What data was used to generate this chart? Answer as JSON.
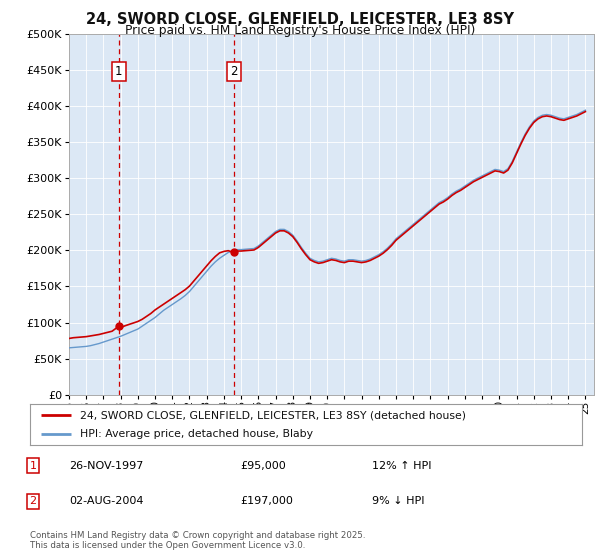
{
  "title_line1": "24, SWORD CLOSE, GLENFIELD, LEICESTER, LE3 8SY",
  "title_line2": "Price paid vs. HM Land Registry's House Price Index (HPI)",
  "legend_entry1": "24, SWORD CLOSE, GLENFIELD, LEICESTER, LE3 8SY (detached house)",
  "legend_entry2": "HPI: Average price, detached house, Blaby",
  "annotation1_date": "26-NOV-1997",
  "annotation1_price": "£95,000",
  "annotation1_hpi": "12% ↑ HPI",
  "annotation2_date": "02-AUG-2004",
  "annotation2_price": "£197,000",
  "annotation2_hpi": "9% ↓ HPI",
  "footer": "Contains HM Land Registry data © Crown copyright and database right 2025.\nThis data is licensed under the Open Government Licence v3.0.",
  "red_color": "#cc0000",
  "blue_color": "#6699cc",
  "plot_bg": "#dce8f5",
  "ylim": [
    0,
    500000
  ],
  "yticks": [
    0,
    50000,
    100000,
    150000,
    200000,
    250000,
    300000,
    350000,
    400000,
    450000,
    500000
  ],
  "xlim_start": 1995.3,
  "xlim_end": 2025.5,
  "sale1_x": 1997.9,
  "sale1_y": 95000,
  "sale2_x": 2004.58,
  "sale2_y": 197000,
  "hpi_x": [
    1995.0,
    1995.25,
    1995.5,
    1995.75,
    1996.0,
    1996.25,
    1996.5,
    1996.75,
    1997.0,
    1997.25,
    1997.5,
    1997.75,
    1998.0,
    1998.25,
    1998.5,
    1998.75,
    1999.0,
    1999.25,
    1999.5,
    1999.75,
    2000.0,
    2000.25,
    2000.5,
    2000.75,
    2001.0,
    2001.25,
    2001.5,
    2001.75,
    2002.0,
    2002.25,
    2002.5,
    2002.75,
    2003.0,
    2003.25,
    2003.5,
    2003.75,
    2004.0,
    2004.25,
    2004.5,
    2004.75,
    2005.0,
    2005.25,
    2005.5,
    2005.75,
    2006.0,
    2006.25,
    2006.5,
    2006.75,
    2007.0,
    2007.25,
    2007.5,
    2007.75,
    2008.0,
    2008.25,
    2008.5,
    2008.75,
    2009.0,
    2009.25,
    2009.5,
    2009.75,
    2010.0,
    2010.25,
    2010.5,
    2010.75,
    2011.0,
    2011.25,
    2011.5,
    2011.75,
    2012.0,
    2012.25,
    2012.5,
    2012.75,
    2013.0,
    2013.25,
    2013.5,
    2013.75,
    2014.0,
    2014.25,
    2014.5,
    2014.75,
    2015.0,
    2015.25,
    2015.5,
    2015.75,
    2016.0,
    2016.25,
    2016.5,
    2016.75,
    2017.0,
    2017.25,
    2017.5,
    2017.75,
    2018.0,
    2018.25,
    2018.5,
    2018.75,
    2019.0,
    2019.25,
    2019.5,
    2019.75,
    2020.0,
    2020.25,
    2020.5,
    2020.75,
    2021.0,
    2021.25,
    2021.5,
    2021.75,
    2022.0,
    2022.25,
    2022.5,
    2022.75,
    2023.0,
    2023.25,
    2023.5,
    2023.75,
    2024.0,
    2024.25,
    2024.5,
    2024.75,
    2025.0
  ],
  "hpi_y": [
    65000,
    65500,
    66000,
    66500,
    67000,
    68000,
    69500,
    71000,
    73000,
    75000,
    77000,
    79000,
    81000,
    83500,
    86000,
    88500,
    91000,
    95000,
    99000,
    103000,
    107000,
    112000,
    117000,
    121000,
    125000,
    129000,
    133000,
    137500,
    143000,
    150000,
    157000,
    164000,
    171000,
    178000,
    184000,
    189000,
    193000,
    197000,
    199000,
    201000,
    201000,
    201500,
    202000,
    202500,
    206000,
    211000,
    216000,
    221000,
    226000,
    229000,
    229000,
    226000,
    221000,
    213000,
    204000,
    196000,
    189000,
    186000,
    184000,
    185000,
    187000,
    189000,
    188000,
    186000,
    185000,
    187000,
    187000,
    186000,
    185000,
    186000,
    188000,
    191000,
    194000,
    198000,
    203000,
    209000,
    216000,
    221000,
    226000,
    231000,
    236000,
    241000,
    246000,
    251000,
    256000,
    261000,
    266000,
    269000,
    273000,
    278000,
    282000,
    285000,
    289000,
    293000,
    297000,
    300000,
    303000,
    306000,
    309000,
    312000,
    311000,
    309000,
    313000,
    323000,
    336000,
    349000,
    361000,
    371000,
    379000,
    384000,
    387000,
    388000,
    387000,
    385000,
    383000,
    382000,
    384000,
    386000,
    388000,
    391000,
    394000
  ],
  "red_x": [
    1995.0,
    1995.25,
    1995.5,
    1995.75,
    1996.0,
    1996.25,
    1996.5,
    1996.75,
    1997.0,
    1997.25,
    1997.5,
    1997.9,
    1998.0,
    1998.25,
    1998.5,
    1998.75,
    1999.0,
    1999.25,
    1999.5,
    1999.75,
    2000.0,
    2000.25,
    2000.5,
    2000.75,
    2001.0,
    2001.25,
    2001.5,
    2001.75,
    2002.0,
    2002.25,
    2002.5,
    2002.75,
    2003.0,
    2003.25,
    2003.5,
    2003.75,
    2004.0,
    2004.25,
    2004.58,
    2004.75,
    2005.0,
    2005.25,
    2005.5,
    2005.75,
    2006.0,
    2006.25,
    2006.5,
    2006.75,
    2007.0,
    2007.25,
    2007.5,
    2007.75,
    2008.0,
    2008.25,
    2008.5,
    2008.75,
    2009.0,
    2009.25,
    2009.5,
    2009.75,
    2010.0,
    2010.25,
    2010.5,
    2010.75,
    2011.0,
    2011.25,
    2011.5,
    2011.75,
    2012.0,
    2012.25,
    2012.5,
    2012.75,
    2013.0,
    2013.25,
    2013.5,
    2013.75,
    2014.0,
    2014.25,
    2014.5,
    2014.75,
    2015.0,
    2015.25,
    2015.5,
    2015.75,
    2016.0,
    2016.25,
    2016.5,
    2016.75,
    2017.0,
    2017.25,
    2017.5,
    2017.75,
    2018.0,
    2018.25,
    2018.5,
    2018.75,
    2019.0,
    2019.25,
    2019.5,
    2019.75,
    2020.0,
    2020.25,
    2020.5,
    2020.75,
    2021.0,
    2021.25,
    2021.5,
    2021.75,
    2022.0,
    2022.25,
    2022.5,
    2022.75,
    2023.0,
    2023.25,
    2023.5,
    2023.75,
    2024.0,
    2024.25,
    2024.5,
    2024.75,
    2025.0
  ],
  "red_y": [
    78000,
    79000,
    79500,
    80000,
    80500,
    81500,
    82500,
    83500,
    85000,
    86500,
    88000,
    95000,
    93000,
    95500,
    97500,
    99500,
    101500,
    104500,
    108500,
    112500,
    117500,
    121500,
    125500,
    129500,
    133500,
    137500,
    141500,
    145500,
    150500,
    157500,
    164500,
    171500,
    178500,
    185500,
    191500,
    196500,
    198500,
    199500,
    197000,
    199000,
    199000,
    199500,
    200000,
    200500,
    204000,
    209000,
    214000,
    219000,
    224000,
    227000,
    227000,
    224000,
    219000,
    211000,
    202000,
    194000,
    187000,
    184000,
    182000,
    183000,
    185000,
    187000,
    186000,
    184000,
    183000,
    185000,
    185000,
    184000,
    183000,
    184000,
    186000,
    189000,
    192000,
    196000,
    201000,
    207000,
    214000,
    219000,
    224000,
    229000,
    234000,
    239000,
    244000,
    249000,
    254000,
    259000,
    264000,
    267000,
    271000,
    276000,
    280000,
    283000,
    287000,
    291000,
    295000,
    298000,
    301000,
    304000,
    307000,
    310000,
    309000,
    307000,
    311000,
    321000,
    334000,
    347000,
    359000,
    369000,
    377000,
    382000,
    385000,
    386000,
    385000,
    383000,
    381000,
    380000,
    382000,
    384000,
    386000,
    389000,
    392000
  ]
}
